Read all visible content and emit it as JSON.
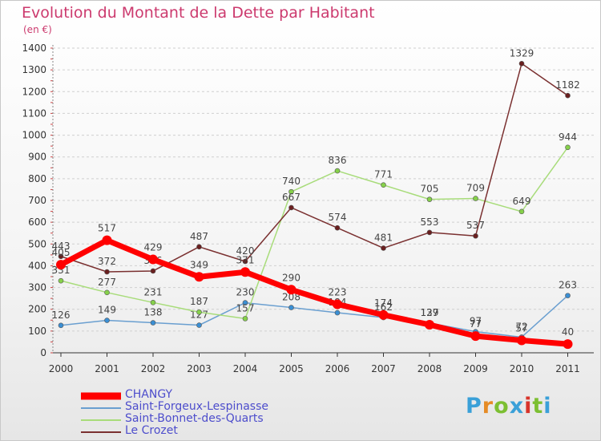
{
  "title": "Evolution du Montant de la Dette par Habitant",
  "subtitle": "(en €)",
  "logo": {
    "text": "Proxiti",
    "colors": [
      "#3aa0d8",
      "#e58b25",
      "#7cbf32",
      "#3aa0d8",
      "#d8342a",
      "#7cbf32",
      "#3aa0d8"
    ]
  },
  "chart_data": {
    "type": "line",
    "title": "Evolution du Montant de la Dette par Habitant",
    "ylabel": "(en €)",
    "xlabel": "",
    "x": [
      "2000",
      "2001",
      "2002",
      "2003",
      "2004",
      "2005",
      "2006",
      "2007",
      "2008",
      "2009",
      "2010",
      "2011"
    ],
    "yticks": [
      "0",
      "100",
      "200",
      "300",
      "400",
      "500",
      "600",
      "700",
      "800",
      "900",
      "1000",
      "1100",
      "1200",
      "1300",
      "1400"
    ],
    "ylim": [
      0,
      1400
    ],
    "grid": "horizontal dashed",
    "legend_position": "bottom-left",
    "series": [
      {
        "name": "Saint-Forgeux-Lespinasse",
        "color": "#6a9fd0",
        "marker": "#3a8fd4",
        "values": [
          126,
          149,
          138,
          127,
          230,
          208,
          184,
          162,
          137,
          97,
          72,
          263
        ]
      },
      {
        "name": "Saint-Bonnet-des-Quarts",
        "color": "#a8dc7a",
        "marker": "#86d14a",
        "values": [
          331,
          277,
          231,
          187,
          157,
          740,
          836,
          771,
          705,
          709,
          649,
          944
        ]
      },
      {
        "name": "Le Crozet",
        "color": "#7a3030",
        "marker": "#6a1f1f",
        "values": [
          443,
          372,
          376,
          487,
          420,
          667,
          574,
          481,
          553,
          537,
          1329,
          1182
        ]
      },
      {
        "name": "CHANGY",
        "color": "#ff0000",
        "marker": "#ff0000",
        "values": [
          405,
          517,
          429,
          349,
          371,
          290,
          223,
          174,
          129,
          77,
          57,
          40
        ],
        "bold": true
      }
    ]
  }
}
